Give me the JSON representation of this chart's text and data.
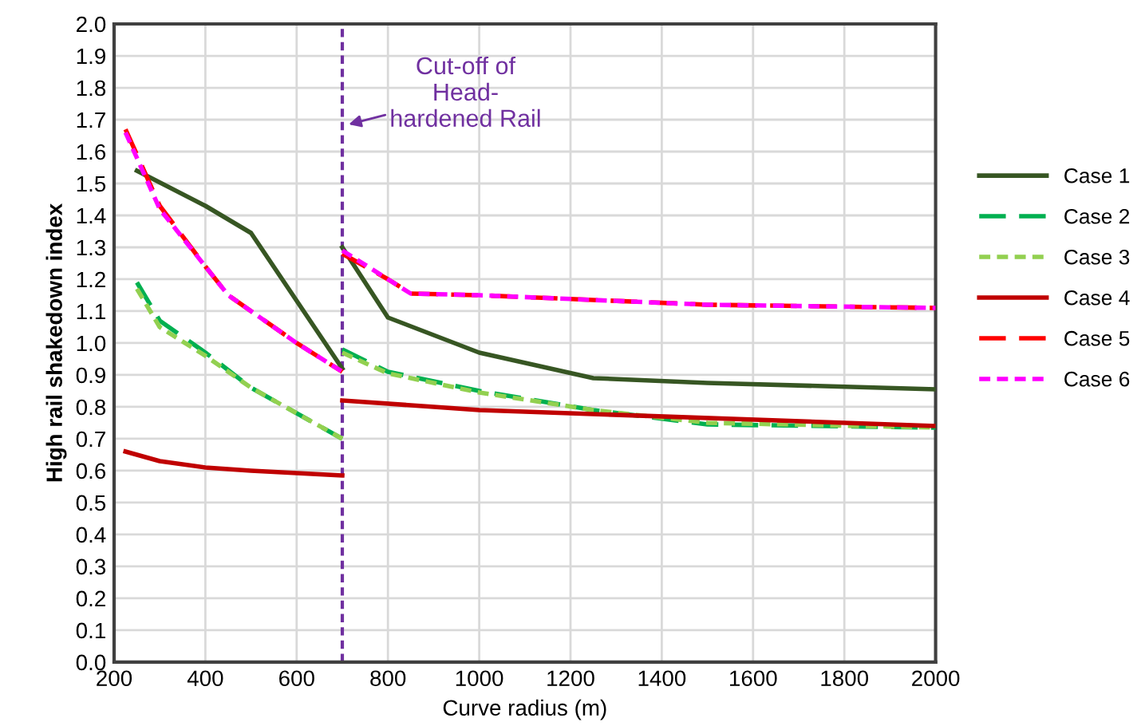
{
  "chart_data": {
    "type": "line",
    "xlabel": "Curve radius (m)",
    "ylabel": "High rail shakedown index",
    "xlim": [
      200,
      2000
    ],
    "xticks": [
      200,
      400,
      600,
      800,
      1000,
      1200,
      1400,
      1600,
      1800,
      2000
    ],
    "ylim": [
      0,
      2
    ],
    "yticks": [
      {
        "value": 0,
        "label": "0.0"
      },
      0.1,
      0.2,
      0.3,
      0.4,
      0.5,
      0.6,
      0.7,
      0.8,
      0.9,
      {
        "value": 1,
        "label": "1.0"
      },
      1.1,
      1.2,
      1.3,
      1.4,
      1.5,
      1.6,
      1.7,
      1.8,
      1.9,
      {
        "value": 2,
        "label": "2.0"
      }
    ],
    "grid": true,
    "legend": "right",
    "series": [
      {
        "name": "Case 1",
        "color": "#375623",
        "line_style": "solid",
        "x": [
          250,
          400,
          500,
          700,
          null,
          700,
          800,
          1000,
          1250,
          1500,
          2000
        ],
        "values": [
          1.54,
          1.43,
          1.345,
          0.92,
          null,
          1.3,
          1.08,
          0.97,
          0.89,
          0.875,
          0.855
        ]
      },
      {
        "name": "Case 2",
        "color": "#00b050",
        "line_style": "dashed",
        "x": [
          250,
          300,
          400,
          500,
          700,
          null,
          700,
          800,
          1000,
          1250,
          1500,
          2000
        ],
        "values": [
          1.19,
          1.07,
          0.97,
          0.86,
          0.7,
          null,
          0.98,
          0.91,
          0.85,
          0.79,
          0.745,
          0.735
        ]
      },
      {
        "name": "Case 3",
        "color": "#92d050",
        "line_style": "dotted",
        "x": [
          250,
          300,
          400,
          500,
          700,
          null,
          700,
          800,
          1000,
          1250,
          1500,
          2000
        ],
        "values": [
          1.17,
          1.05,
          0.96,
          0.86,
          0.7,
          null,
          0.97,
          0.905,
          0.845,
          0.79,
          0.75,
          0.735
        ]
      },
      {
        "name": "Case 4",
        "color": "#c00000",
        "line_style": "solid",
        "x": [
          225,
          300,
          400,
          500,
          700,
          null,
          700,
          1000,
          2000
        ],
        "values": [
          0.66,
          0.63,
          0.61,
          0.6,
          0.585,
          null,
          0.82,
          0.79,
          0.74
        ]
      },
      {
        "name": "Case 5",
        "color": "#ff0000",
        "line_style": "dashed",
        "x": [
          225,
          300,
          400,
          450,
          500,
          600,
          700,
          null,
          700,
          800,
          850,
          1000,
          1500,
          2000
        ],
        "values": [
          1.67,
          1.43,
          1.24,
          1.15,
          1.1,
          1.0,
          0.91,
          null,
          1.28,
          1.2,
          1.155,
          1.15,
          1.12,
          1.11
        ]
      },
      {
        "name": "Case 6",
        "color": "#ff00ff",
        "line_style": "dotted",
        "x": [
          225,
          300,
          400,
          450,
          500,
          600,
          700,
          null,
          700,
          800,
          850,
          1000,
          1500,
          2000
        ],
        "values": [
          1.66,
          1.42,
          1.24,
          1.15,
          1.1,
          1.0,
          0.91,
          null,
          1.29,
          1.2,
          1.155,
          1.15,
          1.12,
          1.11
        ]
      }
    ],
    "ref_lines": [
      {
        "axis": "x",
        "value": 700,
        "color": "#7030a0",
        "line_style": "dotted"
      }
    ],
    "annotations": [
      {
        "text": "Cut-off of\nHead-\nhardened Rail",
        "x": 700,
        "y": 1.68
      }
    ]
  }
}
